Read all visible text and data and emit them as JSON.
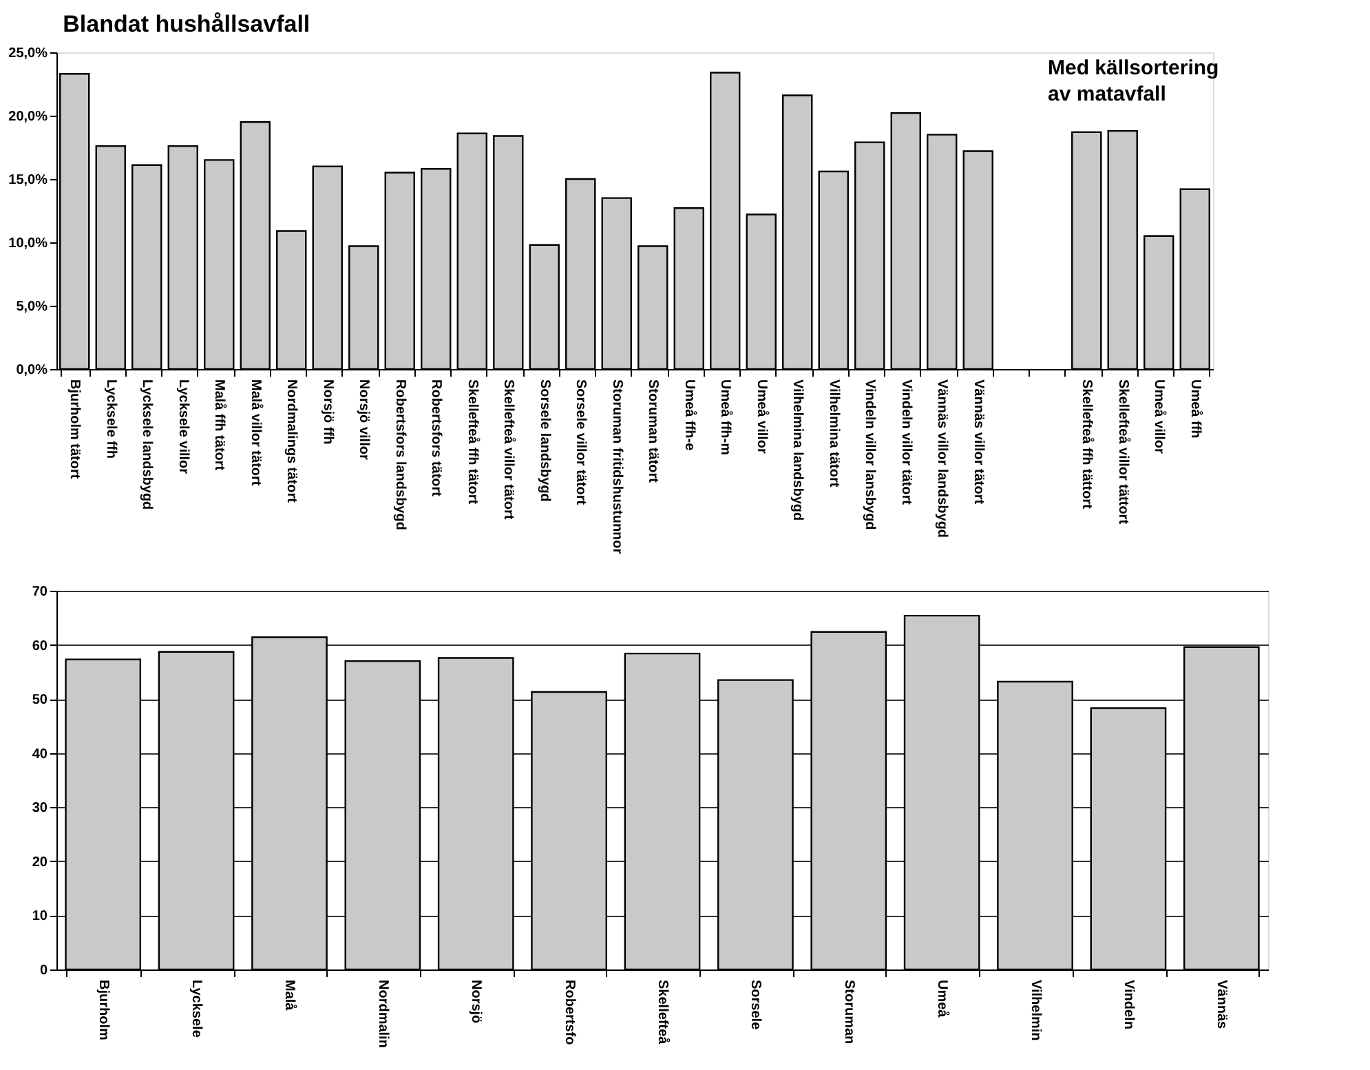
{
  "chart_data": [
    {
      "type": "bar",
      "title": "Blandat hushållsavfall",
      "categories": [
        "Bjurholm tätort",
        "Lycksele ffh",
        "Lycksele landsbygd",
        "Lycksele villor",
        "Malå ffh tätort",
        "Malå villor tätort",
        "Nordmalings tätort",
        "Norsjö ffh",
        "Norsjö villor",
        "Robertsfors landsbygd",
        "Robertsfors tätort",
        "Skellefteå ffh tätort",
        "Skellefteå villor tätort",
        "Sorsele landsbygd",
        "Sorsele villor tätort",
        "Storuman fritidshustunnor",
        "Storuman tätort",
        "Umeå ffh-e",
        "Umeå ffh-m",
        "Umeå villor",
        "Vilhelmina landsbygd",
        "Vilhelmina tätort",
        "Vindeln villor lansbygd",
        "Vindeln villor tätort",
        "Vännäs villor landsbygd",
        "Vännäs villor tätort",
        null,
        null,
        "Skellefteå ffh tättort",
        "Skellefteå villor tättort",
        "Umeå villor",
        "Umeå ffh"
      ],
      "values": [
        23.3,
        17.6,
        16.1,
        17.6,
        16.5,
        19.5,
        10.9,
        16.0,
        9.7,
        15.5,
        15.8,
        18.6,
        18.4,
        9.8,
        15.0,
        13.5,
        9.7,
        12.7,
        23.4,
        12.2,
        21.6,
        15.6,
        17.9,
        20.2,
        18.5,
        17.2,
        null,
        null,
        18.7,
        18.8,
        10.5,
        14.2
      ],
      "color": "#c8c9cb",
      "ylim": [
        0,
        25
      ],
      "yticks": [
        {
          "value": 0,
          "label": "0,0%"
        },
        {
          "value": 5,
          "label": "5,0%"
        },
        {
          "value": 10,
          "label": "10,0%"
        },
        {
          "value": 15,
          "label": "15,0%"
        },
        {
          "value": 20,
          "label": "20,0%"
        },
        {
          "value": 25,
          "label": "25,0%"
        }
      ],
      "grid": false,
      "annotations": [
        "Med källsortering av matavfall"
      ]
    },
    {
      "type": "bar",
      "categories": [
        "Bjurholm",
        "Lycksele",
        "Malå",
        "Nordmalin",
        "Norsjö",
        "Robertsfo",
        "Skellefteå",
        "Sorsele",
        "Storuman",
        "Umeå",
        "Vilhelmin",
        "Vindeln",
        "Vännäs"
      ],
      "values": [
        57.3,
        58.7,
        61.4,
        57.0,
        57.6,
        51.3,
        58.4,
        53.5,
        62.4,
        65.4,
        53.2,
        48.3,
        59.6
      ],
      "color": "#c8c9cb",
      "ylim": [
        0,
        70
      ],
      "yticks": [
        0,
        10,
        20,
        30,
        40,
        50,
        60,
        70
      ],
      "grid": "y"
    }
  ]
}
